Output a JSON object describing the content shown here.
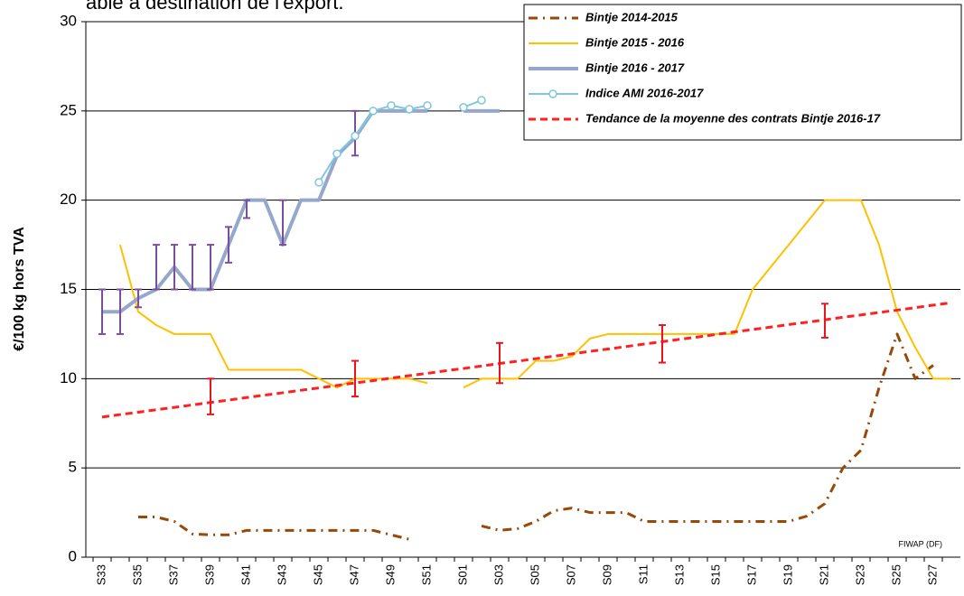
{
  "chart_data": {
    "type": "line",
    "title": "able à destination de l'export.",
    "y_label": "€/100 kg hors TVA",
    "annotation": "FIWAP (DF)",
    "categories": [
      "S33",
      null,
      "S35",
      null,
      "S37",
      null,
      "S39",
      null,
      "S41",
      null,
      "S43",
      null,
      "S45",
      null,
      "S47",
      null,
      "S49",
      null,
      "S51",
      null,
      "S01",
      null,
      "S03",
      null,
      "S05",
      null,
      "S07",
      null,
      "S09",
      null,
      "S11",
      null,
      "S13",
      null,
      "S15",
      null,
      "S17",
      null,
      "S19",
      null,
      "S21",
      null,
      "S23",
      null,
      "S25",
      null,
      "S27",
      null
    ],
    "ylim": [
      0,
      30
    ],
    "yticks": [
      0,
      5,
      10,
      15,
      20,
      25,
      30
    ],
    "grid": true,
    "legend": "top-right",
    "series": [
      {
        "name": "Bintje 2014-2015",
        "color": "#984807",
        "style": "dashdot",
        "width": 3,
        "values": [
          null,
          null,
          2.25,
          2.25,
          2,
          1.3,
          1.25,
          1.25,
          1.5,
          1.5,
          1.5,
          1.5,
          1.5,
          1.5,
          1.5,
          1.5,
          1.25,
          1,
          null,
          null,
          null,
          1.75,
          1.5,
          1.6,
          2,
          2.6,
          2.75,
          2.5,
          2.5,
          2.5,
          2,
          2,
          2,
          2,
          2,
          2,
          2,
          2,
          2,
          2.3,
          3,
          5,
          6,
          9.5,
          12.5,
          10,
          10.75,
          null
        ]
      },
      {
        "name": "Bintje 2015 - 2016",
        "color": "#ffc000",
        "style": "solid",
        "width": 2,
        "values": [
          null,
          17.5,
          13.75,
          13,
          12.5,
          12.5,
          12.5,
          10.5,
          10.5,
          10.5,
          10.5,
          10.5,
          10,
          9.5,
          10,
          10,
          10,
          10,
          9.75,
          null,
          9.5,
          10,
          10,
          10,
          11,
          11,
          11.25,
          12.25,
          12.5,
          12.5,
          12.5,
          12.5,
          12.5,
          12.5,
          12.5,
          12.5,
          15,
          16.25,
          17.5,
          18.75,
          20,
          20,
          20,
          17.5,
          13.75,
          11.75,
          10,
          10
        ]
      },
      {
        "name": "Bintje 2016 - 2017",
        "color": "#95a8cc",
        "style": "solid",
        "width": 4,
        "error_color": "#7b4f9d",
        "values": [
          13.75,
          13.75,
          14.5,
          15,
          16.25,
          15,
          15,
          17.5,
          20,
          20,
          17.5,
          20,
          20,
          22.5,
          23.5,
          25,
          25,
          25,
          25,
          null,
          25,
          25,
          25,
          null,
          null,
          null,
          null,
          null,
          null,
          null,
          null,
          null,
          null,
          null,
          null,
          null,
          null,
          null,
          null,
          null,
          null,
          null,
          null,
          null,
          null,
          null,
          null,
          null
        ],
        "error_low": [
          12.5,
          12.5,
          14,
          15,
          15,
          15,
          15,
          16.5,
          19,
          null,
          17.5,
          null,
          null,
          null,
          22.5,
          null,
          null,
          null,
          null,
          null,
          null,
          null,
          null,
          null,
          null,
          null,
          null,
          null,
          null,
          null,
          null,
          null,
          null,
          null,
          null,
          null,
          null,
          null,
          null,
          null,
          null,
          null,
          null,
          null,
          null,
          null,
          null,
          null
        ],
        "error_high": [
          15,
          15,
          15,
          17.5,
          17.5,
          17.5,
          17.5,
          18.5,
          20,
          null,
          20,
          null,
          null,
          null,
          25,
          null,
          null,
          null,
          null,
          null,
          null,
          null,
          null,
          null,
          null,
          null,
          null,
          null,
          null,
          null,
          null,
          null,
          null,
          null,
          null,
          null,
          null,
          null,
          null,
          null,
          null,
          null,
          null,
          null,
          null,
          null,
          null,
          null
        ]
      },
      {
        "name": "Indice AMI 2016-2017",
        "color": "#7fc7dc",
        "style": "solid",
        "width": 2,
        "marker": "circle",
        "values": [
          null,
          null,
          null,
          null,
          null,
          null,
          null,
          null,
          null,
          null,
          null,
          null,
          21,
          22.6,
          23.6,
          25,
          25.3,
          25.1,
          25.3,
          null,
          25.2,
          25.6,
          null,
          null,
          null,
          null,
          null,
          null,
          null,
          null,
          null,
          null,
          null,
          null,
          null,
          null,
          null,
          null,
          null,
          null,
          null,
          null,
          null,
          null,
          null,
          null,
          null,
          null
        ]
      },
      {
        "name": "Tendance de la moyenne des contrats Bintje 2016-17",
        "color": "#ff2020",
        "style": "dashed",
        "width": 3,
        "error_color": "#e8141e",
        "values": [
          7.85,
          7.99,
          8.12,
          8.26,
          8.39,
          8.53,
          8.67,
          8.8,
          8.94,
          9.08,
          9.21,
          9.35,
          9.48,
          9.62,
          9.76,
          9.89,
          10.03,
          10.17,
          10.3,
          10.44,
          10.57,
          10.71,
          10.85,
          10.98,
          11.12,
          11.26,
          11.39,
          11.53,
          11.66,
          11.8,
          11.94,
          12.07,
          12.21,
          12.34,
          12.48,
          12.62,
          12.75,
          12.89,
          13.03,
          13.16,
          13.3,
          13.44,
          13.57,
          13.71,
          13.84,
          13.98,
          14.12,
          14.25
        ],
        "error_low": [
          null,
          null,
          null,
          null,
          null,
          null,
          8,
          null,
          null,
          null,
          null,
          null,
          null,
          null,
          9,
          null,
          null,
          null,
          null,
          null,
          null,
          null,
          9.75,
          null,
          null,
          null,
          null,
          null,
          null,
          null,
          null,
          10.9,
          null,
          null,
          null,
          null,
          null,
          null,
          null,
          null,
          12.3,
          null,
          null,
          null,
          null,
          null,
          null,
          null
        ],
        "error_high": [
          null,
          null,
          null,
          null,
          null,
          null,
          10,
          null,
          null,
          null,
          null,
          null,
          null,
          null,
          11,
          null,
          null,
          null,
          null,
          null,
          null,
          null,
          12,
          null,
          null,
          null,
          null,
          null,
          null,
          null,
          null,
          13,
          null,
          null,
          null,
          null,
          null,
          null,
          null,
          null,
          14.2,
          null,
          null,
          null,
          null,
          null,
          null,
          null
        ]
      }
    ]
  }
}
